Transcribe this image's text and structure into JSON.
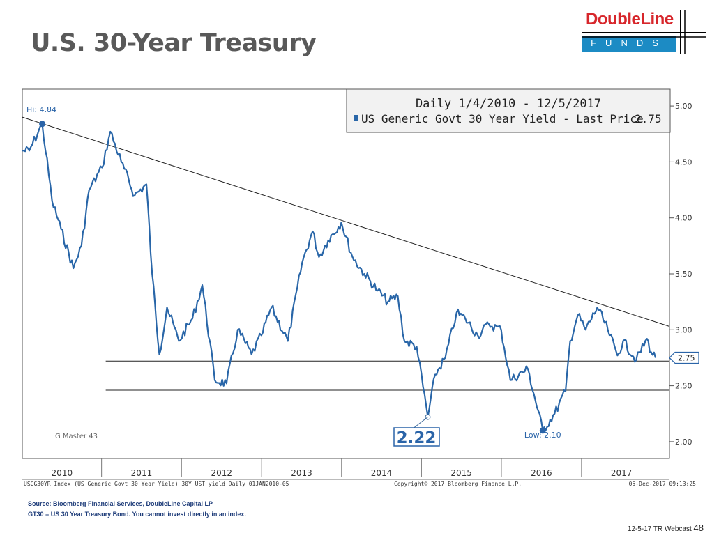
{
  "slide": {
    "title": "U.S. 30-Year Treasury",
    "footer_text": "12-5-17 TR Webcast",
    "page_number": "48"
  },
  "logo": {
    "name": "DoubleLine",
    "sub": "FUNDS"
  },
  "notes": {
    "source": "Source: Bloomberg Financial Services, DoubleLine Capital LP",
    "disclaimer": "GT30 = US 30 Year Treasury Bond. You cannot invest directly in an index."
  },
  "colors": {
    "series": "#2966a8",
    "annotation": "#2a64a8",
    "logo_red": "#d7262b",
    "logo_blue": "#1c8bc4"
  },
  "chart_data": {
    "type": "line",
    "legend": {
      "line1": "Daily 1/4/2010 - 12/5/2017",
      "line2": "US Generic Govt 30 Year Yield - Last Price",
      "last": "2.75",
      "placement": "top-right"
    },
    "x_labels": [
      "2010",
      "2011",
      "2012",
      "2013",
      "2014",
      "2015",
      "2016",
      "2017"
    ],
    "y_ticks": [
      "5.00",
      "4.50",
      "4.00",
      "3.50",
      "3.00",
      "2.50",
      "2.00"
    ],
    "ylim": [
      2.0,
      5.0
    ],
    "xlim": [
      "2010-01-04",
      "2017-12-05"
    ],
    "series": [
      {
        "name": "US Generic Govt 30 Year Yield",
        "x": [
          "2010-01-04",
          "2010-02-05",
          "2010-04-05",
          "2010-05-20",
          "2010-06-30",
          "2010-08-25",
          "2010-10-01",
          "2010-11-05",
          "2011-01-03",
          "2011-02-10",
          "2011-04-01",
          "2011-06-01",
          "2011-07-25",
          "2011-08-20",
          "2011-09-22",
          "2011-10-27",
          "2011-12-20",
          "2012-02-20",
          "2012-04-05",
          "2012-06-01",
          "2012-07-25",
          "2012-09-14",
          "2012-11-16",
          "2012-12-31",
          "2013-02-15",
          "2013-05-01",
          "2013-07-05",
          "2013-08-22",
          "2013-09-20",
          "2013-11-01",
          "2013-12-31",
          "2014-02-20",
          "2014-04-15",
          "2014-06-15",
          "2014-07-31",
          "2014-09-15",
          "2014-10-15",
          "2014-12-10",
          "2015-01-30",
          "2015-03-05",
          "2015-04-20",
          "2015-06-10",
          "2015-07-20",
          "2015-09-15",
          "2015-11-05",
          "2015-12-31",
          "2016-02-11",
          "2016-05-01",
          "2016-07-08",
          "2016-08-31",
          "2016-10-20",
          "2016-11-10",
          "2016-12-15",
          "2017-01-20",
          "2017-03-14",
          "2017-05-01",
          "2017-06-14",
          "2017-07-10",
          "2017-09-08",
          "2017-10-27",
          "2017-11-15",
          "2017-12-05"
        ],
        "y": [
          4.6,
          4.6,
          4.84,
          4.15,
          3.9,
          3.55,
          3.75,
          4.25,
          4.45,
          4.77,
          4.5,
          4.2,
          4.3,
          3.5,
          2.78,
          3.2,
          2.9,
          3.1,
          3.4,
          2.55,
          2.52,
          3.0,
          2.78,
          2.95,
          3.2,
          2.9,
          3.6,
          3.88,
          3.65,
          3.8,
          3.96,
          3.65,
          3.5,
          3.35,
          3.25,
          3.3,
          2.9,
          2.85,
          2.22,
          2.6,
          2.75,
          3.15,
          3.1,
          2.95,
          3.05,
          3.0,
          2.55,
          2.65,
          2.1,
          2.25,
          2.45,
          2.9,
          3.13,
          3.0,
          3.2,
          3.0,
          2.77,
          2.9,
          2.73,
          2.92,
          2.8,
          2.75
        ]
      }
    ],
    "trend_line": {
      "x": [
        "2010-01-04",
        "2017-12-05"
      ],
      "y": [
        4.9,
        3.03
      ]
    },
    "support_lines": [
      {
        "y": 2.72,
        "x_from": "2011-01-20"
      },
      {
        "y": 2.46,
        "x_from": "2011-01-20"
      }
    ],
    "annotations": {
      "high": {
        "label": "Hi: 4.84",
        "x": "2010-04-05",
        "y": 4.84
      },
      "low_2015": {
        "label": "2.22",
        "x": "2015-01-30",
        "y": 2.22
      },
      "low_2016": {
        "label": "Low: 2.10",
        "x": "2016-07-08",
        "y": 2.1
      },
      "master": "G Master 43"
    },
    "footnotes": {
      "left": "USGG30YR Index (US Generic Govt 30 Year Yield) 30Y UST yield  Daily 01JAN2010-05",
      "center": "Copyright© 2017 Bloomberg Finance L.P.",
      "right": "05-Dec-2017 09:13:25"
    }
  }
}
